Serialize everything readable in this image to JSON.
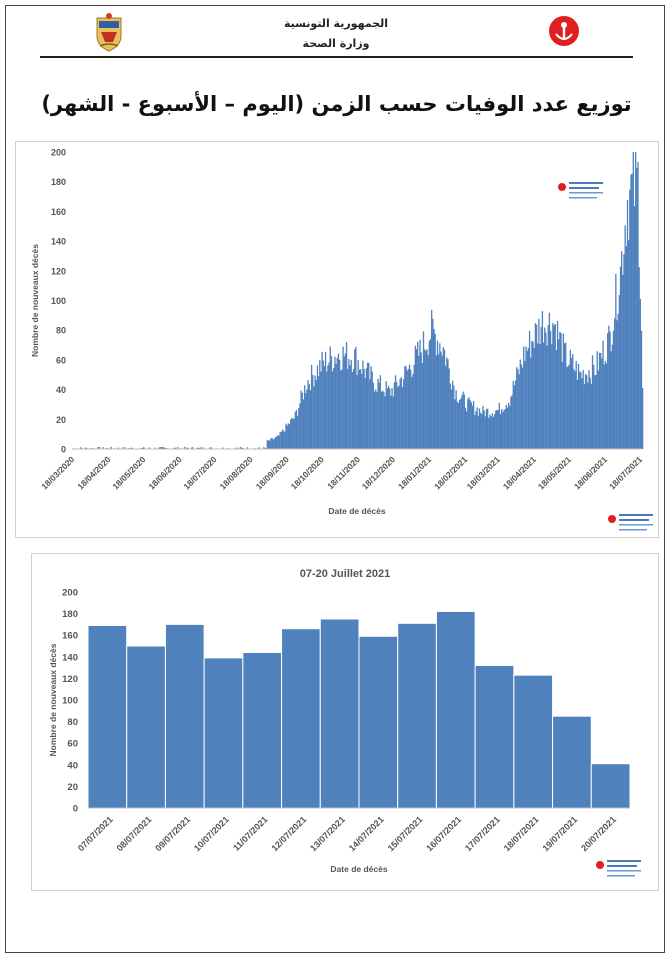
{
  "header": {
    "line1": "الجمهورية التونسية",
    "line2": "وزارة الصحة"
  },
  "page_title": "توزيع عدد الوفيات حسب الزمن (اليوم – الأسبوع - الشهر)",
  "colors": {
    "bar": "#4f81bd",
    "bar_edge": "#3a6496",
    "emblem_red": "#e02020"
  },
  "chart_data": [
    {
      "type": "bar",
      "title": "",
      "xlabel": "Date de décès",
      "ylabel": "Nombre de nouveaux décès",
      "ylim": [
        0,
        200
      ],
      "yticks": [
        0,
        20,
        40,
        60,
        80,
        100,
        120,
        140,
        160,
        180,
        200
      ],
      "x_tick_labels": [
        "18/03/2020",
        "18/04/2020",
        "18/05/2020",
        "18/06/2020",
        "18/07/2020",
        "18/08/2020",
        "18/09/2020",
        "18/10/2020",
        "18/11/2020",
        "18/12/2020",
        "18/01/2021",
        "18/02/2021",
        "18/03/2021",
        "18/04/2021",
        "18/05/2021",
        "18/06/2021",
        "18/07/2021"
      ],
      "x_start": "2020-03-18",
      "x_end": "2021-07-20",
      "monthly_levels": [
        [
          "2020-03-18",
          1
        ],
        [
          "2020-04-01",
          2
        ],
        [
          "2020-04-18",
          1
        ],
        [
          "2020-05-15",
          0
        ],
        [
          "2020-08-10",
          1
        ],
        [
          "2020-08-25",
          3
        ],
        [
          "2020-09-10",
          8
        ],
        [
          "2020-09-25",
          22
        ],
        [
          "2020-10-05",
          45
        ],
        [
          "2020-10-18",
          57
        ],
        [
          "2020-11-01",
          64
        ],
        [
          "2020-11-15",
          62
        ],
        [
          "2020-12-01",
          46
        ],
        [
          "2020-12-15",
          38
        ],
        [
          "2020-12-28",
          50
        ],
        [
          "2021-01-10",
          65
        ],
        [
          "2021-01-20",
          80
        ],
        [
          "2021-01-30",
          68
        ],
        [
          "2021-02-10",
          38
        ],
        [
          "2021-02-20",
          30
        ],
        [
          "2021-03-05",
          25
        ],
        [
          "2021-03-18",
          26
        ],
        [
          "2021-03-28",
          34
        ],
        [
          "2021-04-10",
          65
        ],
        [
          "2021-04-25",
          85
        ],
        [
          "2021-05-05",
          85
        ],
        [
          "2021-05-15",
          62
        ],
        [
          "2021-05-28",
          50
        ],
        [
          "2021-06-10",
          55
        ],
        [
          "2021-06-22",
          75
        ],
        [
          "2021-07-01",
          120
        ],
        [
          "2021-07-07",
          168
        ],
        [
          "2021-07-16",
          180
        ],
        [
          "2021-07-19",
          85
        ],
        [
          "2021-07-20",
          41
        ]
      ]
    },
    {
      "type": "bar",
      "title": "07-20 Juillet 2021",
      "xlabel": "Date de décès",
      "ylabel": "Nombre de nouveaux décès",
      "ylim": [
        0,
        200
      ],
      "yticks": [
        0,
        20,
        40,
        60,
        80,
        100,
        120,
        140,
        160,
        180,
        200
      ],
      "categories": [
        "07/07/2021",
        "08/07/2021",
        "09/07/2021",
        "10/07/2021",
        "11/07/2021",
        "12/07/2021",
        "13/07/2021",
        "14/07/2021",
        "15/07/2021",
        "16/07/2021",
        "17/07/2021",
        "18/07/2021",
        "19/07/2021",
        "20/07/2021"
      ],
      "values": [
        169,
        150,
        170,
        139,
        144,
        166,
        175,
        159,
        171,
        182,
        132,
        123,
        85,
        41
      ]
    }
  ]
}
